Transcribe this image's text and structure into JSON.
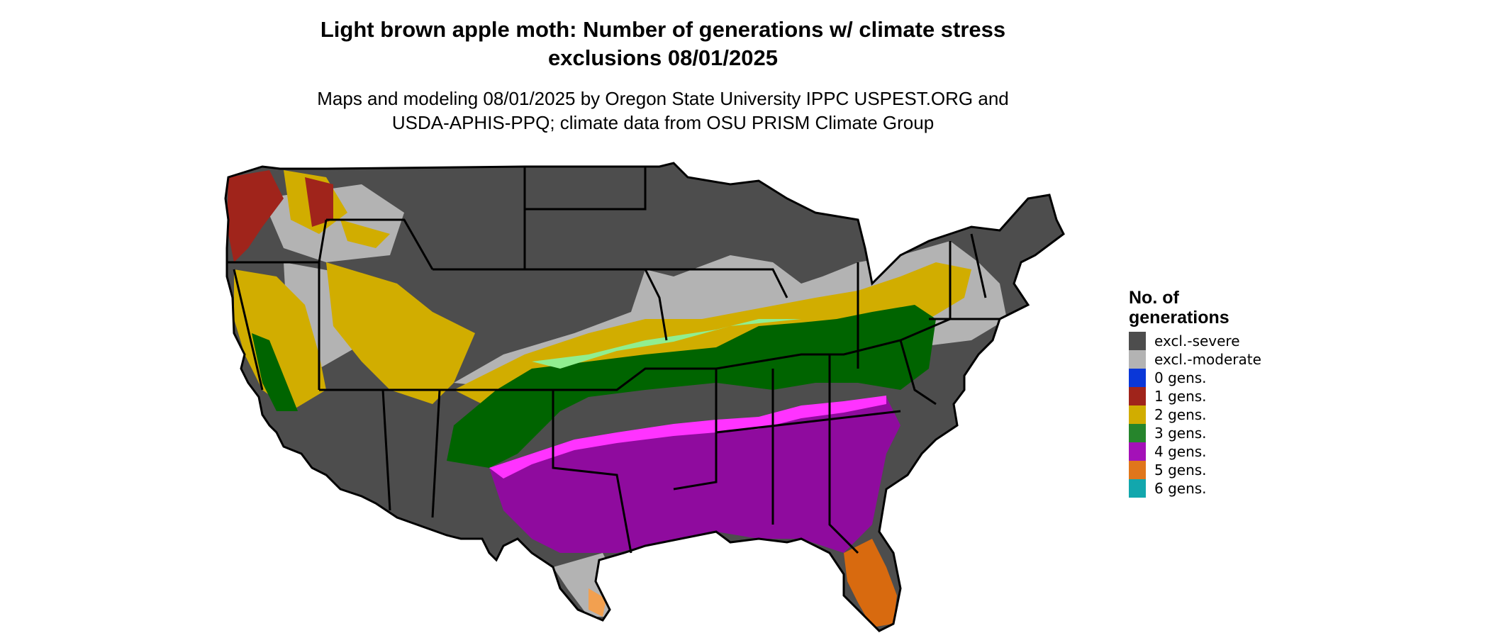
{
  "title_line1": "Light brown apple moth: Number of generations w/ climate stress",
  "title_line2": "exclusions 08/01/2025",
  "subtitle_line1": "Maps and modeling 08/01/2025 by Oregon State University IPPC USPEST.ORG and",
  "subtitle_line2": "USDA-APHIS-PPQ; climate data from OSU PRISM Climate Group",
  "legend": {
    "title_line1": "No. of",
    "title_line2": "generations",
    "items": [
      {
        "label": "excl.-severe",
        "color": "#4d4d4d"
      },
      {
        "label": "excl.-moderate",
        "color": "#b3b3b3"
      },
      {
        "label": "0 gens.",
        "color": "#0a37d8"
      },
      {
        "label": "1 gens.",
        "color": "#a0241b"
      },
      {
        "label": "2 gens.",
        "color": "#d1ad00"
      },
      {
        "label": "3 gens.",
        "color": "#26852c"
      },
      {
        "label": "4 gens.",
        "color": "#a411b8"
      },
      {
        "label": "5 gens.",
        "color": "#e0761b"
      },
      {
        "label": "6 gens.",
        "color": "#12a7ad"
      }
    ]
  },
  "map_colors": {
    "excl_severe": "#4d4d4d",
    "excl_moderate": "#b3b3b3",
    "gen1": "#a0241b",
    "gen2": "#d1ad00",
    "gen3_dark": "#006400",
    "gen3_light": "#90ee90",
    "gen4": "#8f0b9e",
    "gen4_bright": "#ff33ff",
    "gen5": "#d86a0f",
    "gen5_light": "#f2a050",
    "border": "#000000"
  }
}
